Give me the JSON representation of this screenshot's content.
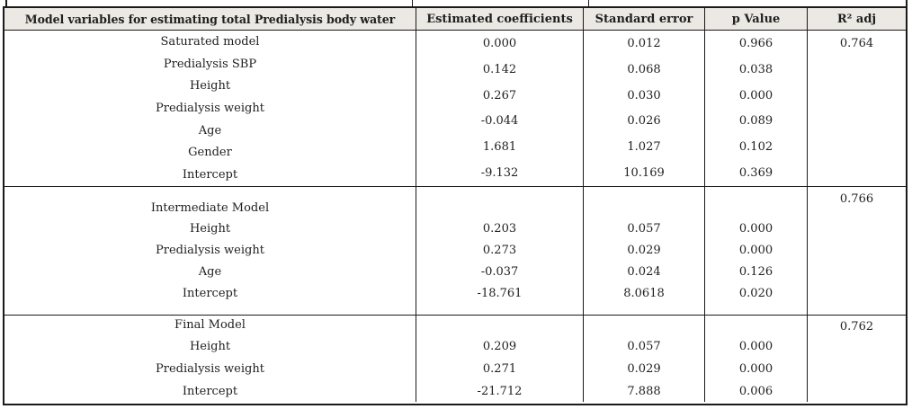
{
  "colors": {
    "header_bg": "#ece9e4",
    "border": "#1a1a1a",
    "text": "#1f1f1f"
  },
  "table": {
    "headers": [
      "Model variables for estimating total Predialysis body water",
      "Estimated coefficients",
      "Standard error",
      "p Value",
      "R² adj"
    ],
    "sections": [
      {
        "name": "Saturated model",
        "labels": [
          "Saturated model",
          "Predialysis SBP",
          "Height",
          "Predialysis weight",
          "Age",
          "Gender",
          "Intercept"
        ],
        "coefficients": [
          "0.000",
          "0.142",
          "0.267",
          "-0.044",
          "1.681",
          "-9.132"
        ],
        "std_errors": [
          "0.012",
          "0.068",
          "0.030",
          "0.026",
          "1.027",
          "10.169"
        ],
        "p_values": [
          "0.966",
          "0.038",
          "0.000",
          "0.089",
          "0.102",
          "0.369"
        ],
        "r2_adj": "0.764"
      },
      {
        "name": "Intermediate Model",
        "labels": [
          "Intermediate Model",
          "Height",
          "Predialysis weight",
          "Age",
          "Intercept"
        ],
        "coefficients": [
          "0.203",
          "0.273",
          "-0.037",
          "-18.761"
        ],
        "std_errors": [
          "0.057",
          "0.029",
          "0.024",
          "8.0618"
        ],
        "p_values": [
          "0.000",
          "0.000",
          "0.126",
          "0.020"
        ],
        "r2_adj": "0.766"
      },
      {
        "name": "Final Model",
        "labels": [
          "Final Model",
          "Height",
          "Predialysis weight",
          "Intercept"
        ],
        "coefficients": [
          "0.209",
          "0.271",
          "-21.712"
        ],
        "std_errors": [
          "0.057",
          "0.029",
          "7.888"
        ],
        "p_values": [
          "0.000",
          "0.000",
          "0.006"
        ],
        "r2_adj": "0.762"
      }
    ]
  }
}
